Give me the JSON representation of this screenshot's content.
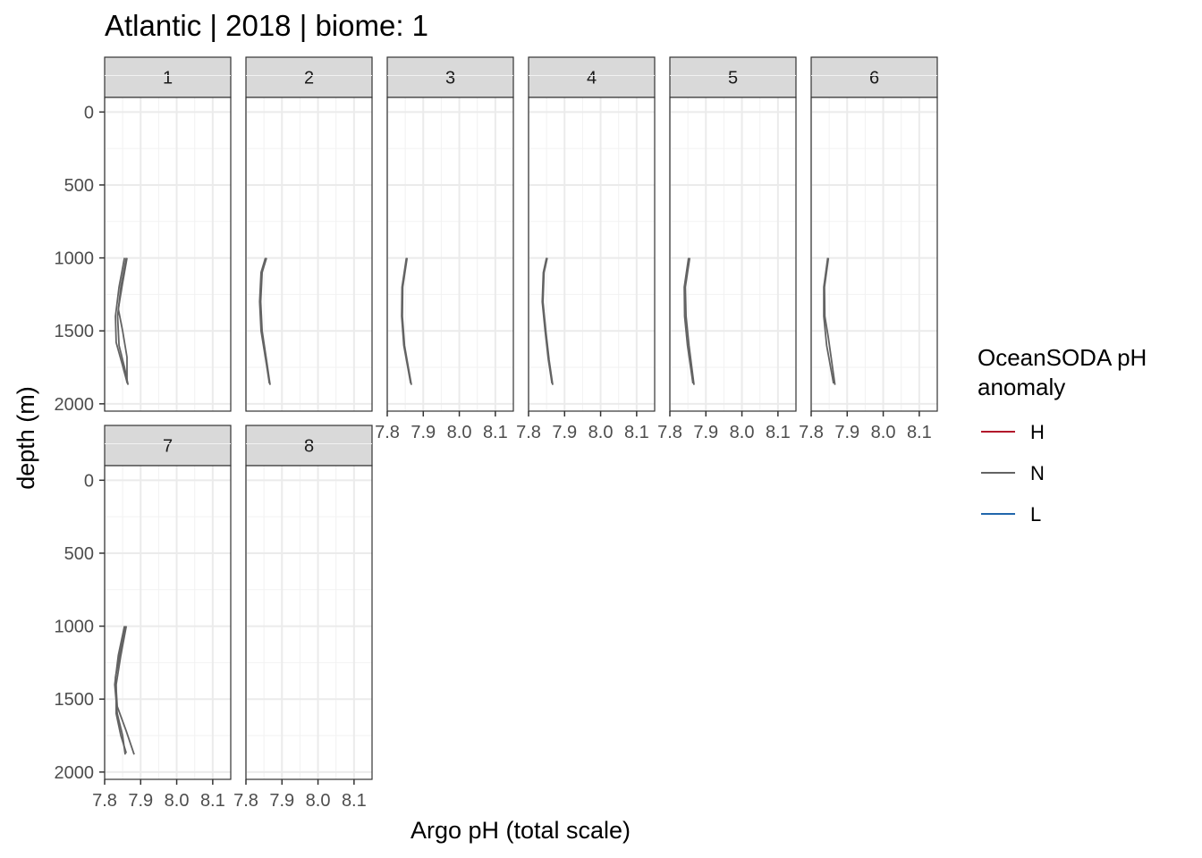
{
  "chart_data": {
    "type": "line",
    "title": "Atlantic | 2018 | biome: 1",
    "xlabel": "Argo pH (total scale)",
    "ylabel": "depth (m)",
    "xlim": [
      7.8,
      8.15
    ],
    "ylim": [
      2050,
      -100
    ],
    "x_ticks": [
      7.8,
      7.9,
      8.0,
      8.1
    ],
    "x_tick_labels": [
      "7.8",
      "7.9",
      "8.0",
      "8.1"
    ],
    "y_ticks": [
      0,
      500,
      1000,
      1500,
      2000
    ],
    "y_tick_labels": [
      "0",
      "500",
      "1000",
      "1500",
      "2000"
    ],
    "grid": true,
    "legend": {
      "title_lines": [
        "OceanSODA pH",
        "anomaly"
      ],
      "position": "right",
      "entries": [
        {
          "label": "H",
          "color": "#b2182b"
        },
        {
          "label": "N",
          "color": "#636363"
        },
        {
          "label": "L",
          "color": "#2166ac"
        }
      ]
    },
    "panels": [
      {
        "label": "1",
        "series": [
          {
            "anomaly": "N",
            "points": [
              [
                7.86,
                1000
              ],
              [
                7.845,
                1200
              ],
              [
                7.836,
                1400
              ],
              [
                7.84,
                1600
              ],
              [
                7.855,
                1750
              ],
              [
                7.865,
                1870
              ]
            ]
          },
          {
            "anomaly": "N",
            "points": [
              [
                7.855,
                1000
              ],
              [
                7.84,
                1200
              ],
              [
                7.83,
                1400
              ],
              [
                7.832,
                1580
              ],
              [
                7.848,
                1720
              ],
              [
                7.863,
                1860
              ]
            ]
          },
          {
            "anomaly": "N",
            "points": [
              [
                7.862,
                1000
              ],
              [
                7.848,
                1200
              ],
              [
                7.838,
                1350
              ],
              [
                7.85,
                1500
              ],
              [
                7.862,
                1680
              ],
              [
                7.862,
                1850
              ]
            ]
          }
        ]
      },
      {
        "label": "2",
        "series": [
          {
            "anomaly": "N",
            "points": [
              [
                7.857,
                1000
              ],
              [
                7.845,
                1100
              ],
              [
                7.841,
                1300
              ],
              [
                7.845,
                1500
              ],
              [
                7.857,
                1700
              ],
              [
                7.867,
                1870
              ]
            ]
          },
          {
            "anomaly": "N",
            "points": [
              [
                7.854,
                1000
              ],
              [
                7.842,
                1100
              ],
              [
                7.838,
                1300
              ],
              [
                7.842,
                1500
              ],
              [
                7.855,
                1700
              ],
              [
                7.865,
                1860
              ]
            ]
          }
        ]
      },
      {
        "label": "3",
        "series": [
          {
            "anomaly": "N",
            "points": [
              [
                7.855,
                1000
              ],
              [
                7.843,
                1200
              ],
              [
                7.842,
                1400
              ],
              [
                7.848,
                1600
              ],
              [
                7.867,
                1870
              ]
            ]
          },
          {
            "anomaly": "N",
            "points": [
              [
                7.853,
                1000
              ],
              [
                7.841,
                1200
              ],
              [
                7.84,
                1400
              ],
              [
                7.846,
                1600
              ],
              [
                7.865,
                1860
              ]
            ]
          }
        ]
      },
      {
        "label": "4",
        "series": [
          {
            "anomaly": "N",
            "points": [
              [
                7.852,
                1000
              ],
              [
                7.843,
                1100
              ],
              [
                7.84,
                1300
              ],
              [
                7.848,
                1500
              ],
              [
                7.857,
                1700
              ],
              [
                7.867,
                1870
              ]
            ]
          },
          {
            "anomaly": "N",
            "points": [
              [
                7.85,
                1000
              ],
              [
                7.841,
                1100
              ],
              [
                7.838,
                1300
              ],
              [
                7.846,
                1500
              ],
              [
                7.855,
                1700
              ],
              [
                7.865,
                1860
              ]
            ]
          }
        ]
      },
      {
        "label": "5",
        "series": [
          {
            "anomaly": "N",
            "points": [
              [
                7.855,
                1000
              ],
              [
                7.843,
                1200
              ],
              [
                7.845,
                1400
              ],
              [
                7.853,
                1600
              ],
              [
                7.867,
                1870
              ]
            ]
          },
          {
            "anomaly": "N",
            "points": [
              [
                7.852,
                1000
              ],
              [
                7.84,
                1200
              ],
              [
                7.841,
                1400
              ],
              [
                7.849,
                1600
              ],
              [
                7.864,
                1860
              ]
            ]
          }
        ]
      },
      {
        "label": "6",
        "series": [
          {
            "anomaly": "N",
            "points": [
              [
                7.848,
                1000
              ],
              [
                7.837,
                1200
              ],
              [
                7.838,
                1400
              ],
              [
                7.848,
                1550
              ],
              [
                7.866,
                1870
              ]
            ]
          },
          {
            "anomaly": "N",
            "points": [
              [
                7.846,
                1000
              ],
              [
                7.835,
                1200
              ],
              [
                7.835,
                1400
              ],
              [
                7.843,
                1600
              ],
              [
                7.862,
                1860
              ]
            ]
          }
        ]
      },
      {
        "label": "7",
        "series": [
          {
            "anomaly": "N",
            "points": [
              [
                7.86,
                1000
              ],
              [
                7.845,
                1200
              ],
              [
                7.832,
                1400
              ],
              [
                7.832,
                1600
              ],
              [
                7.845,
                1750
              ],
              [
                7.86,
                1870
              ]
            ]
          },
          {
            "anomaly": "N",
            "points": [
              [
                7.855,
                1000
              ],
              [
                7.838,
                1200
              ],
              [
                7.828,
                1400
              ],
              [
                7.835,
                1600
              ],
              [
                7.85,
                1750
              ],
              [
                7.857,
                1880
              ]
            ]
          },
          {
            "anomaly": "N",
            "points": [
              [
                7.858,
                1000
              ],
              [
                7.842,
                1200
              ],
              [
                7.83,
                1350
              ],
              [
                7.835,
                1550
              ],
              [
                7.86,
                1720
              ],
              [
                7.882,
                1880
              ]
            ]
          }
        ]
      },
      {
        "label": "8",
        "series": []
      }
    ]
  }
}
